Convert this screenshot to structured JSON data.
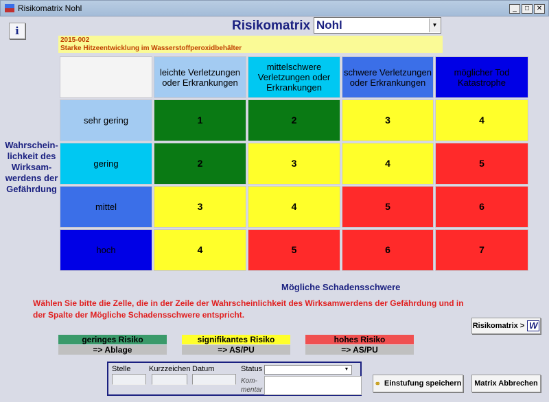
{
  "window": {
    "title": "Risikomatrix Nohl",
    "min": "_",
    "max": "□",
    "close": "✕"
  },
  "info_button": "i",
  "header": {
    "title": "Risikomatrix",
    "selected": "Nohl",
    "arrow": "▼"
  },
  "incident": {
    "id": "2015-002",
    "description": "Starke Hitzeentwicklung im Wasserstoffperoxidbehälter"
  },
  "matrix": {
    "columns": [
      {
        "label": "leichte Verletzungen oder Erkrankungen",
        "color": "#a3cbf2"
      },
      {
        "label": "mittelschwere Verletzungen oder Erkrankungen",
        "color": "#00c8f2"
      },
      {
        "label": "schwere Verletzungen oder Erkrankungen",
        "color": "#3b6fe8"
      },
      {
        "label": "möglicher Tod Katastrophe",
        "color": "#0000e6"
      }
    ],
    "rows": [
      {
        "label": "sehr gering",
        "color": "#a3cbf2",
        "values": [
          "1",
          "2",
          "3",
          "4"
        ]
      },
      {
        "label": "gering",
        "color": "#00c8f2",
        "values": [
          "2",
          "3",
          "4",
          "5"
        ]
      },
      {
        "label": "mittel",
        "color": "#3b6fe8",
        "values": [
          "3",
          "4",
          "5",
          "6"
        ]
      },
      {
        "label": "hoch",
        "color": "#0000e6",
        "values": [
          "4",
          "5",
          "6",
          "7"
        ]
      }
    ],
    "level_colors": {
      "1": "#0a7a14",
      "2": "#0a7a14",
      "3": "#ffff2a",
      "4": "#ffff2a",
      "5": "#ff2a2a",
      "6": "#ff2a2a",
      "7": "#ff2a2a"
    },
    "y_axis_label": "Wahrschein-lichkeit des Wirksam-werdens der Gefährdung",
    "x_axis_label": "Mögliche Schadensschwere"
  },
  "instruction": "Wählen Sie bitte die Zelle, die in der Zeile der Wahrscheinlichkeit des Wirksamwerdens der Gefährdung und in der Spalte der Mögliche Schadensschwere entspricht.",
  "risikomatrix_button": "Risikomatrix >",
  "risikomatrix_icon": "W",
  "legend": [
    {
      "label": "geringes Risiko",
      "action": "=> Ablage",
      "color": "#3a9a6a"
    },
    {
      "label": "signifikantes Risiko",
      "action": "=> AS/PU",
      "color": "#ffff2a"
    },
    {
      "label": "hohes Risiko",
      "action": "=> AS/PU",
      "color": "#f05050"
    }
  ],
  "form": {
    "stelle_label": "Stelle",
    "kurzzeichen_label": "Kurzzeichen",
    "datum_label": "Datum",
    "status_label": "Status",
    "kommentar_label": "Kom-mentar",
    "stelle": "",
    "kurzzeichen": "",
    "datum": "",
    "status": "",
    "kommentar": ""
  },
  "buttons": {
    "save": "Einstufung speichern",
    "cancel": "Matrix Abbrechen"
  }
}
